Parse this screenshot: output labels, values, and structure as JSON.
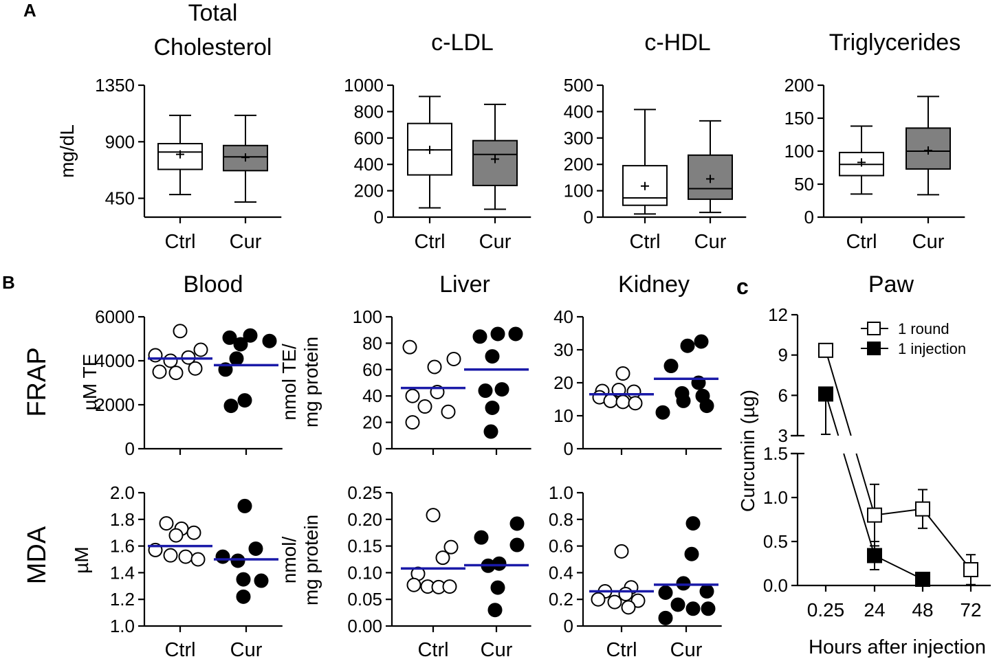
{
  "panel_labels": {
    "a": "A",
    "b": "B",
    "c": "c"
  },
  "row_labels": {
    "frap": "FRAP",
    "mda": "MDA"
  },
  "chart_data": [
    {
      "id": "tc",
      "type": "box",
      "title": [
        "Total",
        "Cholesterol"
      ],
      "ylabel": [
        "mg/dL"
      ],
      "categories": [
        "Ctrl",
        "Cur"
      ],
      "ylim": [
        300,
        1350
      ],
      "yticks": [
        450,
        900,
        1350
      ],
      "ytick_labels": [
        "450",
        "900",
        "1350"
      ],
      "boxes": [
        {
          "group": "Ctrl",
          "min": 480,
          "q1": 680,
          "median": 818,
          "q3": 885,
          "max": 1110,
          "mean": 800,
          "fill": "#ffffff"
        },
        {
          "group": "Cur",
          "min": 420,
          "q1": 670,
          "median": 780,
          "q3": 870,
          "max": 1110,
          "mean": 775,
          "fill": "#808080"
        }
      ]
    },
    {
      "id": "ldl",
      "type": "box",
      "title": [
        "c-LDL"
      ],
      "ylabel": [],
      "categories": [
        "Ctrl",
        "Cur"
      ],
      "ylim": [
        0,
        1000
      ],
      "yticks": [
        0,
        200,
        400,
        600,
        800,
        1000
      ],
      "ytick_labels": [
        "0",
        "200",
        "400",
        "600",
        "800",
        "1000"
      ],
      "boxes": [
        {
          "group": "Ctrl",
          "min": 70,
          "q1": 320,
          "median": 510,
          "q3": 710,
          "max": 915,
          "mean": 510,
          "fill": "#ffffff"
        },
        {
          "group": "Cur",
          "min": 60,
          "q1": 240,
          "median": 475,
          "q3": 580,
          "max": 855,
          "mean": 440,
          "fill": "#808080"
        }
      ]
    },
    {
      "id": "hdl",
      "type": "box",
      "title": [
        "c-HDL"
      ],
      "ylabel": [],
      "categories": [
        "Ctrl",
        "Cur"
      ],
      "ylim": [
        0,
        500
      ],
      "yticks": [
        0,
        100,
        200,
        300,
        400,
        500
      ],
      "ytick_labels": [
        "0",
        "100",
        "200",
        "300",
        "400",
        "500"
      ],
      "boxes": [
        {
          "group": "Ctrl",
          "min": 12,
          "q1": 45,
          "median": 73,
          "q3": 195,
          "max": 408,
          "mean": 118,
          "fill": "#ffffff"
        },
        {
          "group": "Cur",
          "min": 18,
          "q1": 68,
          "median": 108,
          "q3": 235,
          "max": 365,
          "mean": 145,
          "fill": "#808080"
        }
      ]
    },
    {
      "id": "tg",
      "type": "box",
      "title": [
        "Triglycerides"
      ],
      "ylabel": [],
      "categories": [
        "Ctrl",
        "Cur"
      ],
      "ylim": [
        0,
        200
      ],
      "yticks": [
        0,
        50,
        100,
        150,
        200
      ],
      "ytick_labels": [
        "0",
        "50",
        "100",
        "150",
        "200"
      ],
      "boxes": [
        {
          "group": "Ctrl",
          "min": 35,
          "q1": 63,
          "median": 80,
          "q3": 98,
          "max": 138,
          "mean": 83,
          "fill": "#ffffff"
        },
        {
          "group": "Cur",
          "min": 34,
          "q1": 73,
          "median": 100,
          "q3": 135,
          "max": 183,
          "mean": 101,
          "fill": "#808080"
        }
      ]
    },
    {
      "id": "frap_blood",
      "type": "scatter",
      "title": [
        "Blood"
      ],
      "ylabel": [
        "µM TE"
      ],
      "categories": [
        "Ctrl",
        "Cur"
      ],
      "ylim": [
        0,
        6000
      ],
      "yticks": [
        0,
        2000,
        4000,
        6000
      ],
      "ytick_labels": [
        "0",
        "2000",
        "4000",
        "6000"
      ],
      "mean_color": "#1a1aa8",
      "groups": [
        {
          "group": "Ctrl",
          "filled": false,
          "mean": 4100,
          "points": [
            [
              0,
              5350
            ],
            [
              -0.9,
              4250
            ],
            [
              -0.35,
              4000
            ],
            [
              0.3,
              4150
            ],
            [
              0.75,
              4500
            ],
            [
              -0.75,
              3500
            ],
            [
              -0.15,
              3450
            ],
            [
              0.55,
              3650
            ]
          ]
        },
        {
          "group": "Cur",
          "filled": true,
          "mean": 3800,
          "points": [
            [
              -0.6,
              5050
            ],
            [
              -0.2,
              4750
            ],
            [
              0.15,
              5150
            ],
            [
              0.85,
              4900
            ],
            [
              -0.35,
              4100
            ],
            [
              -0.75,
              3600
            ],
            [
              -0.05,
              2200
            ],
            [
              -0.55,
              1950
            ]
          ]
        }
      ]
    },
    {
      "id": "frap_liver",
      "type": "scatter",
      "title": [
        "Liver"
      ],
      "ylabel": [
        "nmol TE/",
        "mg protein"
      ],
      "categories": [
        "Ctrl",
        "Cur"
      ],
      "ylim": [
        0,
        100
      ],
      "yticks": [
        0,
        20,
        40,
        60,
        80,
        100
      ],
      "ytick_labels": [
        "0",
        "20",
        "40",
        "60",
        "80",
        "100"
      ],
      "mean_color": "#1a1aa8",
      "groups": [
        {
          "group": "Ctrl",
          "filled": false,
          "mean": 46,
          "points": [
            [
              -0.85,
              77
            ],
            [
              0.75,
              68
            ],
            [
              0.05,
              62
            ],
            [
              -0.75,
              40
            ],
            [
              0.15,
              43
            ],
            [
              -0.3,
              32
            ],
            [
              0.55,
              28
            ],
            [
              -0.75,
              20
            ]
          ]
        },
        {
          "group": "Cur",
          "filled": true,
          "mean": 60,
          "points": [
            [
              -0.6,
              85
            ],
            [
              0.05,
              87
            ],
            [
              0.7,
              87
            ],
            [
              -0.15,
              70
            ],
            [
              -0.4,
              44
            ],
            [
              0.2,
              45
            ],
            [
              -0.15,
              31
            ],
            [
              -0.2,
              13
            ]
          ]
        }
      ]
    },
    {
      "id": "frap_kidney",
      "type": "scatter",
      "title": [
        "Kidney"
      ],
      "ylabel": [],
      "categories": [
        "Ctrl",
        "Cur"
      ],
      "ylim": [
        0,
        40
      ],
      "yticks": [
        0,
        10,
        20,
        30,
        40
      ],
      "ytick_labels": [
        "0",
        "10",
        "20",
        "30",
        "40"
      ],
      "mean_color": "#1a1aa8",
      "groups": [
        {
          "group": "Ctrl",
          "filled": false,
          "mean": 16.5,
          "points": [
            [
              0.05,
              22.8
            ],
            [
              -0.7,
              17.5
            ],
            [
              -0.1,
              17.8
            ],
            [
              0.45,
              17.3
            ],
            [
              -0.8,
              15.6
            ],
            [
              -0.4,
              14.5
            ],
            [
              0.05,
              14.2
            ],
            [
              0.5,
              13.8
            ]
          ]
        },
        {
          "group": "Cur",
          "filled": true,
          "mean": 21.2,
          "points": [
            [
              0.05,
              31.2
            ],
            [
              0.55,
              32.5
            ],
            [
              -0.55,
              25.1
            ],
            [
              0.45,
              20
            ],
            [
              -0.15,
              16.8
            ],
            [
              0.6,
              16
            ],
            [
              -0.85,
              11
            ],
            [
              -0.1,
              14.5
            ],
            [
              0.75,
              13
            ]
          ]
        }
      ]
    },
    {
      "id": "mda_blood",
      "type": "scatter",
      "title": [],
      "ylabel": [
        "µM"
      ],
      "categories": [
        "Ctrl",
        "Cur"
      ],
      "ylim": [
        1.0,
        2.0
      ],
      "yticks": [
        1.0,
        1.2,
        1.4,
        1.6,
        1.8,
        2.0
      ],
      "ytick_labels": [
        "1.0",
        "1.2",
        "1.4",
        "1.6",
        "1.8",
        "2.0"
      ],
      "mean_color": "#1a1aa8",
      "groups": [
        {
          "group": "Ctrl",
          "filled": false,
          "mean": 1.6,
          "points": [
            [
              -0.5,
              1.77
            ],
            [
              0.05,
              1.73
            ],
            [
              0.5,
              1.7
            ],
            [
              -0.15,
              1.68
            ],
            [
              -0.9,
              1.57
            ],
            [
              -0.35,
              1.53
            ],
            [
              0.2,
              1.52
            ],
            [
              0.65,
              1.5
            ]
          ]
        },
        {
          "group": "Cur",
          "filled": true,
          "mean": 1.5,
          "points": [
            [
              -0.05,
              1.9
            ],
            [
              0.35,
              1.58
            ],
            [
              -0.85,
              1.52
            ],
            [
              -0.3,
              1.49
            ],
            [
              -0.1,
              1.35
            ],
            [
              0.55,
              1.34
            ],
            [
              -0.1,
              1.22
            ]
          ]
        }
      ]
    },
    {
      "id": "mda_liver",
      "type": "scatter",
      "title": [],
      "ylabel": [
        "nmol/",
        "mg protein"
      ],
      "categories": [
        "Ctrl",
        "Cur"
      ],
      "ylim": [
        0,
        0.25
      ],
      "yticks": [
        0,
        0.05,
        0.1,
        0.15,
        0.2,
        0.25
      ],
      "ytick_labels": [
        "0.00",
        "0.05",
        "0.10",
        "0.15",
        "0.20",
        "0.25"
      ],
      "mean_color": "#1a1aa8",
      "groups": [
        {
          "group": "Ctrl",
          "filled": false,
          "mean": 0.108,
          "points": [
            [
              0,
              0.208
            ],
            [
              0.65,
              0.148
            ],
            [
              0.35,
              0.128
            ],
            [
              -0.55,
              0.098
            ],
            [
              -0.7,
              0.077
            ],
            [
              -0.2,
              0.074
            ],
            [
              0.2,
              0.073
            ],
            [
              0.6,
              0.074
            ]
          ]
        },
        {
          "group": "Cur",
          "filled": true,
          "mean": 0.114,
          "points": [
            [
              0.75,
              0.192
            ],
            [
              -0.55,
              0.166
            ],
            [
              0.75,
              0.152
            ],
            [
              -0.3,
              0.113
            ],
            [
              0.1,
              0.117
            ],
            [
              0.05,
              0.072
            ],
            [
              -0.05,
              0.03
            ]
          ]
        }
      ]
    },
    {
      "id": "mda_kidney",
      "type": "scatter",
      "title": [],
      "ylabel": [],
      "categories": [
        "Ctrl",
        "Cur"
      ],
      "ylim": [
        0,
        1.0
      ],
      "yticks": [
        0,
        0.2,
        0.4,
        0.6,
        0.8,
        1.0
      ],
      "ytick_labels": [
        "0",
        "0.2",
        "0.4",
        "0.6",
        "0.8",
        "1.0"
      ],
      "mean_color": "#1a1aa8",
      "groups": [
        {
          "group": "Ctrl",
          "filled": false,
          "mean": 0.26,
          "points": [
            [
              0,
              0.56
            ],
            [
              -0.6,
              0.26
            ],
            [
              0.35,
              0.29
            ],
            [
              0.15,
              0.24
            ],
            [
              -0.85,
              0.2
            ],
            [
              -0.25,
              0.18
            ],
            [
              0.6,
              0.19
            ],
            [
              0.25,
              0.14
            ]
          ]
        },
        {
          "group": "Cur",
          "filled": true,
          "mean": 0.31,
          "points": [
            [
              0.25,
              0.77
            ],
            [
              0.2,
              0.54
            ],
            [
              -0.1,
              0.32
            ],
            [
              -0.75,
              0.25
            ],
            [
              0.75,
              0.26
            ],
            [
              -0.3,
              0.16
            ],
            [
              0.8,
              0.13
            ],
            [
              0.25,
              0.13
            ],
            [
              -0.75,
              0.06
            ]
          ]
        }
      ]
    },
    {
      "id": "paw",
      "type": "line",
      "title": [
        "Paw"
      ],
      "ylabel": [
        "Curcumin (µg)"
      ],
      "xlabel": "Hours after injection",
      "x": [
        "0.25",
        "24",
        "48",
        "72"
      ],
      "ylim_lower": [
        0,
        1.5
      ],
      "yticks_lower": [
        0,
        0.5,
        1.0,
        1.5
      ],
      "ytick_labels_lower": [
        "0.0",
        "0.5",
        "1.0",
        "1.5"
      ],
      "ylim_upper": [
        3,
        12
      ],
      "yticks_upper": [
        3,
        6,
        9,
        12
      ],
      "ytick_labels_upper": [
        "3",
        "6",
        "9",
        "12"
      ],
      "legend_position": "top-right",
      "series": [
        {
          "name": "1 round",
          "marker": "open-square",
          "values": [
            9.35,
            0.8,
            0.87,
            0.18
          ],
          "err": [
            null,
            0.35,
            0.22,
            0.17
          ],
          "err_dir": [
            "none",
            "both",
            "both",
            "both"
          ]
        },
        {
          "name": "1 injection",
          "marker": "filled-square",
          "values": [
            6.1,
            0.34,
            0.07,
            null
          ],
          "err": [
            3.0,
            0.16,
            null,
            null
          ],
          "err_dir": [
            "down",
            "both",
            "none",
            "none"
          ]
        }
      ]
    }
  ]
}
